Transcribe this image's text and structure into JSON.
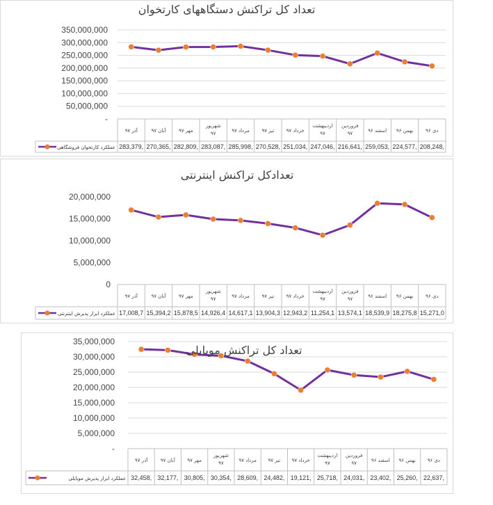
{
  "theme": {
    "line_color": "#7030A0",
    "marker_color": "#ED7D31",
    "grid_color": "#d9d9d9",
    "axis_color": "#bfbfbf"
  },
  "chart_data": [
    {
      "type": "line",
      "title": "تعداد کل تراکنش دستگاههای کارتخوان",
      "categories": [
        "دی ۹۶",
        "بهمن ۹۶",
        "اسفند ۹۶",
        "فروردین ۹۷",
        "اردیبهشت ۹۷",
        "خرداد ۹۷",
        "تیر ۹۷",
        "مرداد ۹۷",
        "شهریور ۹۷",
        "مهر ۹۷",
        "آبان ۹۷",
        "آذر ۹۷"
      ],
      "yticks": [
        "-",
        "50,000,000",
        "100,000,000",
        "150,000,000",
        "200,000,000",
        "250,000,000",
        "300,000,000",
        "350,000,000"
      ],
      "ylim": [
        0,
        350000000
      ],
      "grid": true,
      "series": [
        {
          "name": "عملکرد کارتخوان فروشگاهی",
          "values": [
            208248000,
            224577000,
            259053000,
            216641000,
            247046000,
            251034000,
            270528000,
            285998000,
            283087000,
            282809000,
            270365000,
            283379000
          ],
          "cell_labels": [
            "208,248,",
            "224,577,",
            "259,053,",
            "216,641,",
            "247,046,",
            "251,034,",
            "270,528,",
            "285,998,",
            "283,087,",
            "282,809,",
            "270,365,",
            "283,379,"
          ]
        }
      ]
    },
    {
      "type": "line",
      "title": "تعدادکل تراکنش اینترنتی",
      "categories": [
        "دی ۹۶",
        "بهمن ۹۶",
        "اسفند ۹۶",
        "فروردین ۹۷",
        "اردیبهشت ۹۷",
        "خرداد ۹۷",
        "تیر ۹۷",
        "مرداد ۹۷",
        "شهریور ۹۷",
        "مهر ۹۷",
        "آبان ۹۷",
        "آذر ۹۷"
      ],
      "yticks": [
        "0",
        "5,000,000",
        "10,000,000",
        "15,000,000",
        "20,000,000"
      ],
      "ylim": [
        0,
        20000000
      ],
      "grid": false,
      "series": [
        {
          "name": "عملکرد ابزار پذیرش اینترنتی",
          "values": [
            15271000,
            18275800,
            18539900,
            13574100,
            11254100,
            12943200,
            13904300,
            14617100,
            14926400,
            15878500,
            15394200,
            17008700
          ],
          "cell_labels": [
            "15,271,0",
            "18,275,8",
            "18,539,9",
            "13,574,1",
            "11,254,1",
            "12,943,2",
            "13,904,3",
            "14,617,1",
            "14,926,4",
            "15,878,5",
            "15,394,2",
            "17,008,7"
          ]
        }
      ]
    },
    {
      "type": "line",
      "title": "تعداد کل تراکنش موبایلی",
      "categories": [
        "دی ۹۶",
        "بهمن ۹۶",
        "اسفند ۹۶",
        "فروردین ۹۷",
        "اردیبهشت ۹۷",
        "خرداد ۹۷",
        "تیر ۹۷",
        "مرداد ۹۷",
        "شهریور ۹۷",
        "مهر ۹۷",
        "آبان ۹۷",
        "آذر ۹۷"
      ],
      "yticks": [
        "-",
        "5,000,000",
        "10,000,000",
        "15,000,000",
        "20,000,000",
        "25,000,000",
        "30,000,000",
        "35,000,000"
      ],
      "ylim": [
        0,
        35000000
      ],
      "grid": true,
      "series": [
        {
          "name": "عملکرد ابزار پذیرش موبایلی",
          "values": [
            22637000,
            25260000,
            23402000,
            24031000,
            25718000,
            19121000,
            24482000,
            28609000,
            30354000,
            30805000,
            32177000,
            32458000
          ],
          "cell_labels": [
            "22,637,",
            "25,260,",
            "23,402,",
            "24,031,",
            "25,718,",
            "19,121,",
            "24,482,",
            "28,609,",
            "30,354,",
            "30,805,",
            "32,177,",
            "32,458,"
          ]
        }
      ]
    }
  ]
}
